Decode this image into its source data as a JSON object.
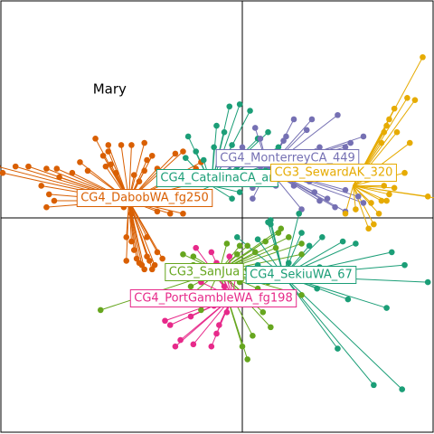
{
  "chart_data": {
    "type": "scatter",
    "subtype": "star-plot (points linked to group centroids)",
    "title": "",
    "xlabel": "",
    "ylabel": "",
    "xlim": [
      -1.0,
      1.0
    ],
    "ylim": [
      -1.0,
      1.0
    ],
    "axes_lines": "x=0 and y=0 drawn",
    "grid": false,
    "legend": "none (group labels placed at centroids)",
    "annotations": [
      {
        "text": "Mary",
        "x": -0.58,
        "y": 0.58
      }
    ],
    "series": [
      {
        "name": "CG4_DabobWA_fg250",
        "color": "#D95F02",
        "centroid": [
          -0.44,
          0.08
        ],
        "points": [
          [
            -0.95,
            0.24
          ],
          [
            -0.93,
            0.21
          ],
          [
            -0.88,
            0.24
          ],
          [
            -0.83,
            0.24
          ],
          [
            -0.76,
            0.23
          ],
          [
            -0.72,
            0.23
          ],
          [
            -0.71,
            0.19
          ],
          [
            -0.78,
            0.15
          ],
          [
            -0.75,
            0.11
          ],
          [
            -0.73,
            0.08
          ],
          [
            -0.76,
            0.05
          ],
          [
            -0.66,
            0.21
          ],
          [
            -0.63,
            0.26
          ],
          [
            -0.6,
            0.22
          ],
          [
            -0.57,
            0.37
          ],
          [
            -0.54,
            0.29
          ],
          [
            -0.52,
            0.31
          ],
          [
            -0.51,
            0.25
          ],
          [
            -0.49,
            0.21
          ],
          [
            -0.47,
            0.34
          ],
          [
            -0.43,
            0.34
          ],
          [
            -0.38,
            0.35
          ],
          [
            -0.37,
            0.27
          ],
          [
            -0.35,
            0.29
          ],
          [
            -0.33,
            0.23
          ],
          [
            -0.42,
            0.2
          ],
          [
            -0.26,
            0.3
          ],
          [
            -0.23,
            0.31
          ],
          [
            -0.18,
            0.23
          ],
          [
            -0.16,
            0.26
          ],
          [
            -0.13,
            0.18
          ],
          [
            -0.43,
            0.02
          ],
          [
            -0.33,
            0.03
          ],
          [
            -0.28,
            0.02
          ],
          [
            -0.23,
            0.02
          ],
          [
            -0.27,
            0.1
          ],
          [
            -0.53,
            0.24
          ],
          [
            -0.46,
            0.05
          ],
          [
            -0.45,
            -0.09
          ],
          [
            -0.43,
            -0.11
          ],
          [
            -0.42,
            -0.15
          ],
          [
            -0.41,
            -0.19
          ],
          [
            -0.4,
            -0.21
          ],
          [
            -0.39,
            -0.22
          ],
          [
            -0.38,
            -0.24
          ],
          [
            -0.37,
            -0.18
          ],
          [
            -0.36,
            -0.2
          ],
          [
            -0.35,
            -0.24
          ],
          [
            -0.34,
            -0.22
          ],
          [
            -0.33,
            -0.16
          ],
          [
            -0.37,
            -0.09
          ],
          [
            -0.45,
            -0.2
          ],
          [
            -0.31,
            -0.19
          ],
          [
            -0.38,
            0.22
          ],
          [
            -0.4,
            0.17
          ],
          [
            -0.52,
            0.34
          ]
        ]
      },
      {
        "name": "CG4_CatalinaCA_ar",
        "color": "#1B9E77",
        "centroid": [
          -0.12,
          0.15
        ],
        "points": [
          [
            -0.05,
            0.52
          ],
          [
            -0.01,
            0.53
          ],
          [
            -0.1,
            0.43
          ],
          [
            -0.07,
            0.4
          ],
          [
            -0.21,
            0.38
          ],
          [
            -0.04,
            0.34
          ],
          [
            -0.11,
            0.33
          ],
          [
            0.03,
            0.5
          ],
          [
            0.1,
            0.4
          ],
          [
            -0.18,
            0.31
          ],
          [
            -0.22,
            0.28
          ],
          [
            -0.23,
            0.19
          ],
          [
            -0.25,
            0.08
          ],
          [
            -0.04,
            0.09
          ],
          [
            -0.01,
            0.12
          ],
          [
            -0.02,
            0.24
          ],
          [
            -0.15,
            0.27
          ],
          [
            0.06,
            0.37
          ],
          [
            0.14,
            0.33
          ],
          [
            0.16,
            0.28
          ],
          [
            0.2,
            0.26
          ],
          [
            0.16,
            0.2
          ],
          [
            0.09,
            0.22
          ]
        ]
      },
      {
        "name": "CG4_MonterreyCA_449",
        "color": "#7570B3",
        "centroid": [
          0.1,
          0.23
        ],
        "points": [
          [
            0.0,
            0.33
          ],
          [
            0.07,
            0.24
          ],
          [
            0.07,
            0.37
          ],
          [
            0.16,
            0.36
          ],
          [
            0.17,
            0.38
          ],
          [
            0.2,
            0.46
          ],
          [
            0.25,
            0.41
          ],
          [
            0.27,
            0.46
          ],
          [
            0.3,
            0.33
          ],
          [
            0.33,
            0.31
          ],
          [
            0.37,
            0.48
          ],
          [
            0.4,
            0.33
          ],
          [
            0.42,
            0.35
          ],
          [
            0.14,
            0.23
          ],
          [
            0.18,
            0.24
          ],
          [
            0.23,
            0.22
          ],
          [
            0.24,
            0.25
          ],
          [
            0.26,
            0.26
          ],
          [
            0.3,
            0.24
          ],
          [
            0.34,
            0.19
          ],
          [
            0.4,
            0.13
          ],
          [
            0.45,
            0.1
          ],
          [
            0.47,
            0.07
          ],
          [
            0.4,
            0.03
          ],
          [
            0.36,
            0.05
          ],
          [
            0.33,
            0.09
          ],
          [
            0.3,
            0.08
          ],
          [
            0.28,
            0.12
          ],
          [
            0.26,
            0.17
          ],
          [
            0.2,
            0.15
          ],
          [
            0.13,
            0.18
          ],
          [
            0.04,
            0.14
          ],
          [
            0.1,
            0.2
          ],
          [
            0.13,
            0.15
          ],
          [
            0.44,
            0.22
          ],
          [
            0.47,
            0.38
          ],
          [
            0.04,
            0.09
          ],
          [
            0.23,
            0.04
          ],
          [
            -0.05,
            0.22
          ],
          [
            0.05,
            0.42
          ]
        ]
      },
      {
        "name": "CG3_SewardAK_320",
        "color": "#E6AB02",
        "centroid": [
          0.43,
          0.15
        ],
        "points": [
          [
            0.7,
            0.75
          ],
          [
            0.64,
            0.56
          ],
          [
            0.59,
            0.51
          ],
          [
            0.57,
            0.46
          ],
          [
            0.56,
            0.43
          ],
          [
            0.55,
            0.4
          ],
          [
            0.54,
            0.35
          ],
          [
            0.58,
            0.24
          ],
          [
            0.63,
            0.21
          ],
          [
            0.82,
            0.08
          ],
          [
            0.72,
            0.1
          ],
          [
            0.57,
            0.11
          ],
          [
            0.56,
            0.08
          ],
          [
            0.54,
            0.08
          ],
          [
            0.53,
            0.02
          ],
          [
            0.51,
            -0.03
          ],
          [
            0.49,
            -0.05
          ],
          [
            0.4,
            0.02
          ],
          [
            0.44,
            0.04
          ],
          [
            0.5,
            0.07
          ],
          [
            0.55,
            0.15
          ],
          [
            0.59,
            0.14
          ],
          [
            0.48,
            0.18
          ],
          [
            0.65,
            0.35
          ],
          [
            0.67,
            0.55
          ],
          [
            0.6,
            0.4
          ]
        ]
      },
      {
        "name": "CG3_SanJua",
        "color": "#66A61E",
        "centroid": [
          -0.09,
          -0.25
        ],
        "points": [
          [
            -0.19,
            -0.18
          ],
          [
            -0.23,
            -0.17
          ],
          [
            -0.19,
            -0.22
          ],
          [
            -0.18,
            -0.28
          ],
          [
            -0.2,
            -0.32
          ],
          [
            -0.06,
            -0.12
          ],
          [
            -0.01,
            -0.13
          ],
          [
            -0.02,
            -0.17
          ],
          [
            0.02,
            -0.13
          ],
          [
            0.09,
            -0.11
          ],
          [
            0.14,
            -0.07
          ],
          [
            0.18,
            -0.09
          ],
          [
            0.23,
            -0.17
          ],
          [
            0.23,
            -0.12
          ],
          [
            0.05,
            -0.16
          ],
          [
            0.13,
            -0.14
          ],
          [
            0.23,
            -0.36
          ],
          [
            0.1,
            -0.3
          ],
          [
            0.08,
            -0.44
          ],
          [
            0.04,
            -0.55
          ],
          [
            0.0,
            -0.6
          ],
          [
            0.03,
            -0.38
          ],
          [
            -0.01,
            -0.3
          ],
          [
            0.15,
            -0.05
          ],
          [
            -0.55,
            -0.43
          ],
          [
            -0.22,
            -0.38
          ],
          [
            -0.16,
            -0.43
          ],
          [
            0.02,
            -0.66
          ],
          [
            0.11,
            -0.51
          ],
          [
            0.06,
            -0.33
          ],
          [
            0.2,
            -0.29
          ],
          [
            0.02,
            -0.24
          ]
        ]
      },
      {
        "name": "CG4_SekiuWA_67",
        "color": "#1B9E77",
        "centroid": [
          0.16,
          -0.27
        ],
        "points": [
          [
            -0.02,
            -0.09
          ],
          [
            0.11,
            -0.01
          ],
          [
            0.1,
            -0.02
          ],
          [
            0.11,
            -0.03
          ],
          [
            0.22,
            0.02
          ],
          [
            0.23,
            -0.07
          ],
          [
            0.26,
            -0.13
          ],
          [
            0.31,
            -0.09
          ],
          [
            0.39,
            -0.11
          ],
          [
            0.44,
            -0.12
          ],
          [
            0.58,
            -0.16
          ],
          [
            0.63,
            -0.22
          ],
          [
            0.72,
            -0.3
          ],
          [
            0.25,
            -0.25
          ],
          [
            0.18,
            -0.21
          ],
          [
            0.06,
            -0.22
          ],
          [
            0.29,
            -0.33
          ],
          [
            0.41,
            -0.38
          ],
          [
            0.37,
            -0.61
          ],
          [
            0.51,
            -0.78
          ],
          [
            0.62,
            -0.8
          ],
          [
            0.56,
            -0.42
          ],
          [
            0.06,
            -0.1
          ],
          [
            0.3,
            -0.23
          ]
        ]
      },
      {
        "name": "CG4_PortGambleWA_fg198",
        "color": "#E7298A",
        "centroid": [
          -0.04,
          -0.37
        ],
        "points": [
          [
            -0.28,
            -0.5
          ],
          [
            -0.24,
            -0.57
          ],
          [
            -0.19,
            -0.59
          ],
          [
            -0.12,
            -0.6
          ],
          [
            -0.1,
            -0.54
          ],
          [
            -0.06,
            -0.44
          ],
          [
            -0.11,
            -0.41
          ],
          [
            -0.16,
            -0.3
          ],
          [
            -0.13,
            -0.23
          ],
          [
            -0.1,
            -0.21
          ],
          [
            -0.12,
            -0.16
          ],
          [
            -0.18,
            -0.14
          ],
          [
            -0.05,
            -0.18
          ],
          [
            -0.02,
            -0.24
          ],
          [
            -0.06,
            -0.28
          ],
          [
            -0.09,
            -0.5
          ],
          [
            -0.2,
            -0.46
          ],
          [
            -0.3,
            -0.48
          ],
          [
            -0.26,
            -0.6
          ],
          [
            -0.07,
            -0.32
          ]
        ]
      }
    ],
    "labels": [
      {
        "name": "CG4_DabobWA_fg250",
        "color": "#D95F02",
        "text_color": "#D95F02"
      },
      {
        "name": "CG4_CatalinaCA_ar",
        "color": "#1B9E77",
        "text_color": "#1B9E77"
      },
      {
        "name": "CG4_MonterreyCA_449",
        "color": "#7570B3",
        "text_color": "#7570B3"
      },
      {
        "name": "CG3_SewardAK_320",
        "color": "#E6AB02",
        "text_color": "#E6AB02"
      },
      {
        "name": "CG3_SanJua",
        "color": "#66A61E",
        "text_color": "#66A61E"
      },
      {
        "name": "CG4_SekiuWA_67",
        "color": "#1B9E77",
        "text_color": "#1B9E77"
      },
      {
        "name": "CG4_PortGambleWA_fg198",
        "color": "#E7298A",
        "text_color": "#E7298A"
      }
    ]
  }
}
